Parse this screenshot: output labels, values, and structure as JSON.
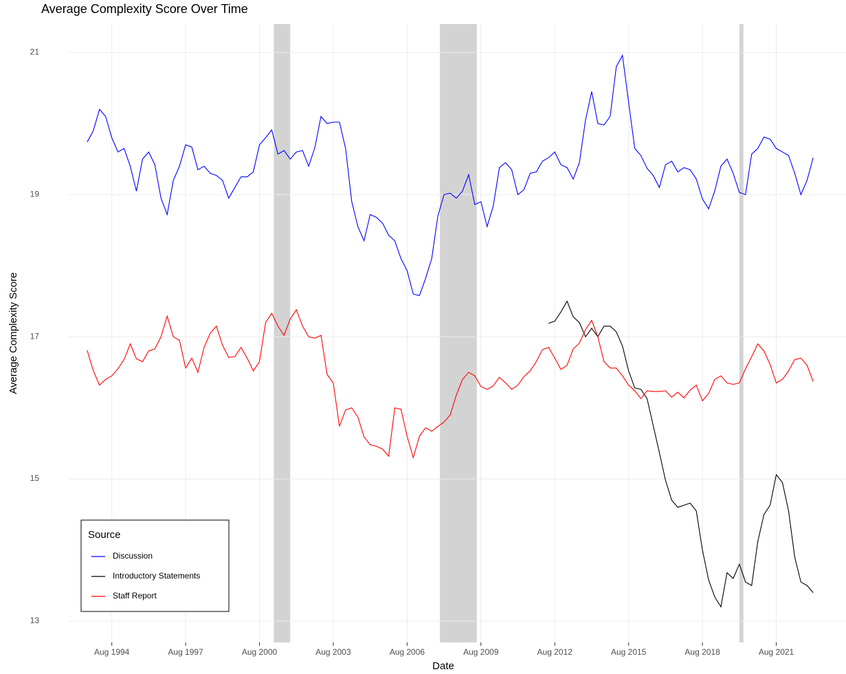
{
  "chart_data": {
    "type": "line",
    "title": "Average Complexity Score Over Time",
    "x_label": "Date",
    "y_label": "Average Complexity Score",
    "legend_title": "Source",
    "legend_position": "bottom-left",
    "grid": true,
    "x": [
      "1993-08",
      "1993-11",
      "1994-02",
      "1994-05",
      "1994-08",
      "1994-11",
      "1995-02",
      "1995-05",
      "1995-08",
      "1995-11",
      "1996-02",
      "1996-05",
      "1996-08",
      "1996-11",
      "1997-02",
      "1997-05",
      "1997-08",
      "1997-11",
      "1998-02",
      "1998-05",
      "1998-08",
      "1998-11",
      "1999-02",
      "1999-05",
      "1999-08",
      "1999-11",
      "2000-02",
      "2000-05",
      "2000-08",
      "2000-11",
      "2001-02",
      "2001-05",
      "2001-08",
      "2001-11",
      "2002-02",
      "2002-05",
      "2002-08",
      "2002-11",
      "2003-02",
      "2003-05",
      "2003-08",
      "2003-11",
      "2004-02",
      "2004-05",
      "2004-08",
      "2004-11",
      "2005-02",
      "2005-05",
      "2005-08",
      "2005-11",
      "2006-02",
      "2006-05",
      "2006-08",
      "2006-11",
      "2007-02",
      "2007-05",
      "2007-08",
      "2007-11",
      "2008-02",
      "2008-05",
      "2008-08",
      "2008-11",
      "2009-02",
      "2009-05",
      "2009-08",
      "2009-11",
      "2010-02",
      "2010-05",
      "2010-08",
      "2010-11",
      "2011-02",
      "2011-05",
      "2011-08",
      "2011-11",
      "2012-02",
      "2012-05",
      "2012-08",
      "2012-11",
      "2013-02",
      "2013-05",
      "2013-08",
      "2013-11",
      "2014-02",
      "2014-05",
      "2014-08",
      "2014-11",
      "2015-02",
      "2015-05",
      "2015-08",
      "2015-11",
      "2016-02",
      "2016-05",
      "2016-08",
      "2016-11",
      "2017-02",
      "2017-05",
      "2017-08",
      "2017-11",
      "2018-02",
      "2018-05",
      "2018-08",
      "2018-11",
      "2019-02",
      "2019-05",
      "2019-08",
      "2019-11",
      "2020-02",
      "2020-05",
      "2020-08",
      "2020-11",
      "2021-02",
      "2021-05",
      "2021-08",
      "2021-11",
      "2022-02",
      "2022-05",
      "2022-08",
      "2022-11",
      "2023-02"
    ],
    "series": [
      {
        "name": "Discussion",
        "color": "#0000ff",
        "values": [
          19.74,
          19.9,
          20.2,
          20.1,
          19.8,
          19.6,
          19.65,
          19.4,
          19.05,
          19.5,
          19.6,
          19.42,
          18.95,
          18.72,
          19.2,
          19.4,
          19.7,
          19.67,
          19.35,
          19.4,
          19.3,
          19.27,
          19.2,
          18.95,
          19.1,
          19.25,
          19.25,
          19.32,
          19.7,
          19.8,
          19.91,
          19.57,
          19.62,
          19.5,
          19.6,
          19.62,
          19.4,
          19.66,
          20.1,
          20.0,
          20.02,
          20.02,
          19.65,
          18.9,
          18.55,
          18.35,
          18.72,
          18.68,
          18.6,
          18.43,
          18.35,
          18.1,
          17.93,
          17.6,
          17.58,
          17.82,
          18.1,
          18.7,
          19.0,
          19.02,
          18.95,
          19.05,
          19.28,
          18.86,
          18.9,
          18.55,
          18.84,
          19.38,
          19.45,
          19.35,
          19.0,
          19.07,
          19.3,
          19.32,
          19.47,
          19.52,
          19.6,
          19.42,
          19.38,
          19.22,
          19.45,
          20.05,
          20.45,
          20.0,
          19.98,
          20.1,
          20.8,
          20.96,
          20.3,
          19.65,
          19.55,
          19.37,
          19.27,
          19.1,
          19.42,
          19.47,
          19.32,
          19.38,
          19.35,
          19.22,
          18.94,
          18.8,
          19.05,
          19.4,
          19.5,
          19.3,
          19.03,
          19.0,
          19.57,
          19.65,
          19.81,
          19.78,
          19.65,
          19.6,
          19.55,
          19.3,
          19.0,
          19.2,
          19.52
        ]
      },
      {
        "name": "Introductory Statements",
        "color": "#000000",
        "values": [
          null,
          null,
          null,
          null,
          null,
          null,
          null,
          null,
          null,
          null,
          null,
          null,
          null,
          null,
          null,
          null,
          null,
          null,
          null,
          null,
          null,
          null,
          null,
          null,
          null,
          null,
          null,
          null,
          null,
          null,
          null,
          null,
          null,
          null,
          null,
          null,
          null,
          null,
          null,
          null,
          null,
          null,
          null,
          null,
          null,
          null,
          null,
          null,
          null,
          null,
          null,
          null,
          null,
          null,
          null,
          null,
          null,
          null,
          null,
          null,
          null,
          null,
          null,
          null,
          null,
          null,
          null,
          null,
          null,
          null,
          null,
          null,
          null,
          null,
          null,
          17.19,
          17.22,
          17.35,
          17.5,
          17.28,
          17.2,
          17.0,
          17.12,
          17.0,
          17.15,
          17.15,
          17.07,
          16.87,
          16.52,
          16.28,
          16.26,
          16.13,
          15.75,
          15.37,
          14.98,
          14.7,
          14.6,
          14.63,
          14.66,
          14.55,
          14.0,
          13.58,
          13.34,
          13.2,
          13.68,
          13.6,
          13.8,
          13.55,
          13.5,
          14.12,
          14.5,
          14.63,
          15.06,
          14.95,
          14.55,
          13.9,
          13.55,
          13.5,
          13.4
        ]
      },
      {
        "name": "Staff Report",
        "color": "#ff0000",
        "values": [
          16.81,
          16.52,
          16.32,
          16.4,
          16.45,
          16.55,
          16.68,
          16.9,
          16.69,
          16.65,
          16.8,
          16.83,
          17.0,
          17.29,
          17.0,
          16.95,
          16.56,
          16.7,
          16.5,
          16.85,
          17.05,
          17.15,
          16.88,
          16.71,
          16.72,
          16.85,
          16.7,
          16.52,
          16.65,
          17.2,
          17.33,
          17.15,
          17.02,
          17.25,
          17.38,
          17.15,
          17.0,
          16.98,
          17.02,
          16.47,
          16.35,
          15.74,
          15.97,
          16.0,
          15.87,
          15.59,
          15.48,
          15.46,
          15.42,
          15.32,
          16.0,
          15.98,
          15.6,
          15.3,
          15.6,
          15.72,
          15.67,
          15.74,
          15.8,
          15.9,
          16.18,
          16.4,
          16.5,
          16.45,
          16.3,
          16.26,
          16.31,
          16.43,
          16.35,
          16.26,
          16.32,
          16.44,
          16.52,
          16.65,
          16.82,
          16.85,
          16.7,
          16.54,
          16.6,
          16.83,
          16.91,
          17.1,
          17.23,
          17.0,
          16.65,
          16.56,
          16.56,
          16.45,
          16.32,
          16.24,
          16.13,
          16.24,
          16.23,
          16.23,
          16.24,
          16.15,
          16.22,
          16.14,
          16.25,
          16.32,
          16.1,
          16.2,
          16.4,
          16.45,
          16.35,
          16.33,
          16.35,
          16.55,
          16.72,
          16.9,
          16.8,
          16.61,
          16.35,
          16.4,
          16.52,
          16.68,
          16.7,
          16.6,
          16.37
        ]
      }
    ],
    "shaded_periods": [
      {
        "start": "2001-03",
        "end": "2001-11"
      },
      {
        "start": "2007-12",
        "end": "2009-06"
      },
      {
        "start": "2020-02",
        "end": "2020-04"
      }
    ],
    "shade_color": "#d3d3d3",
    "xlim": [
      "1992-11",
      "2024-06"
    ],
    "xticks": [
      {
        "value": "1994-08",
        "label": "Aug 1994"
      },
      {
        "value": "1997-08",
        "label": "Aug 1997"
      },
      {
        "value": "2000-08",
        "label": "Aug 2000"
      },
      {
        "value": "2003-08",
        "label": "Aug 2003"
      },
      {
        "value": "2006-08",
        "label": "Aug 2006"
      },
      {
        "value": "2009-08",
        "label": "Aug 2009"
      },
      {
        "value": "2012-08",
        "label": "Aug 2012"
      },
      {
        "value": "2015-08",
        "label": "Aug 2015"
      },
      {
        "value": "2018-08",
        "label": "Aug 2018"
      },
      {
        "value": "2021-08",
        "label": "Aug 2021"
      }
    ],
    "ylim": [
      12.7,
      21.4
    ],
    "yticks": [
      13,
      15,
      17,
      19,
      21
    ]
  }
}
